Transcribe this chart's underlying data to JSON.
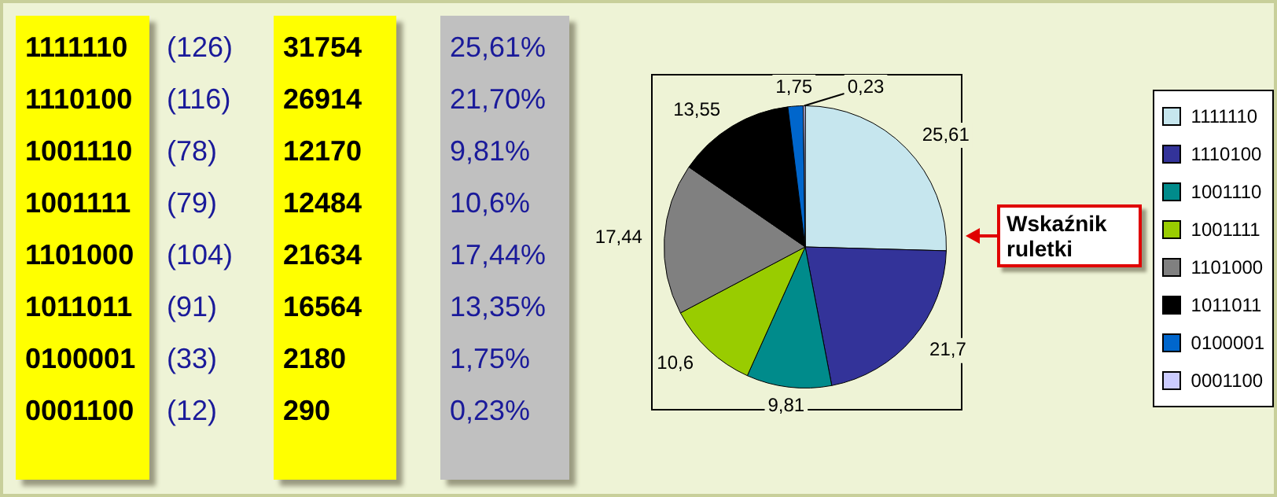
{
  "chart_data": [
    {
      "type": "other",
      "annotations": [
        "1111110",
        "(126)",
        "31754",
        "25,61%",
        "1110100",
        "(116)",
        "26914",
        "21,70%",
        "1001110",
        "(78)",
        "12170",
        "9,81%",
        "1001111",
        "(79)",
        "12484",
        "10,6%",
        "1101000",
        "(104)",
        "21634",
        "17,44%",
        "1011011",
        "(91)",
        "16564",
        "13,35%",
        "0100001",
        "(33)",
        "2180",
        "1,75%",
        "0001100",
        "(12)",
        "290",
        "0,23%"
      ]
    },
    {
      "type": "pie",
      "categories": [
        "1111110",
        "1110100",
        "1001110",
        "1001111",
        "1101000",
        "1011011",
        "0100001",
        "0001100"
      ],
      "values": [
        25.61,
        21.7,
        9.81,
        10.6,
        17.44,
        13.55,
        1.75,
        0.23
      ],
      "colors": [
        "#c6e6ee",
        "#333399",
        "#008b8b",
        "#99cc00",
        "#808080",
        "#000000",
        "#0066cc",
        "#ccccff"
      ],
      "value_labels": [
        "25,61",
        "21,7",
        "9,81",
        "10,6",
        "17,44",
        "13,55",
        "1,75",
        "0,23"
      ],
      "legend": "right",
      "annotations": [
        "Wskaźnik ruletki"
      ]
    }
  ]
}
